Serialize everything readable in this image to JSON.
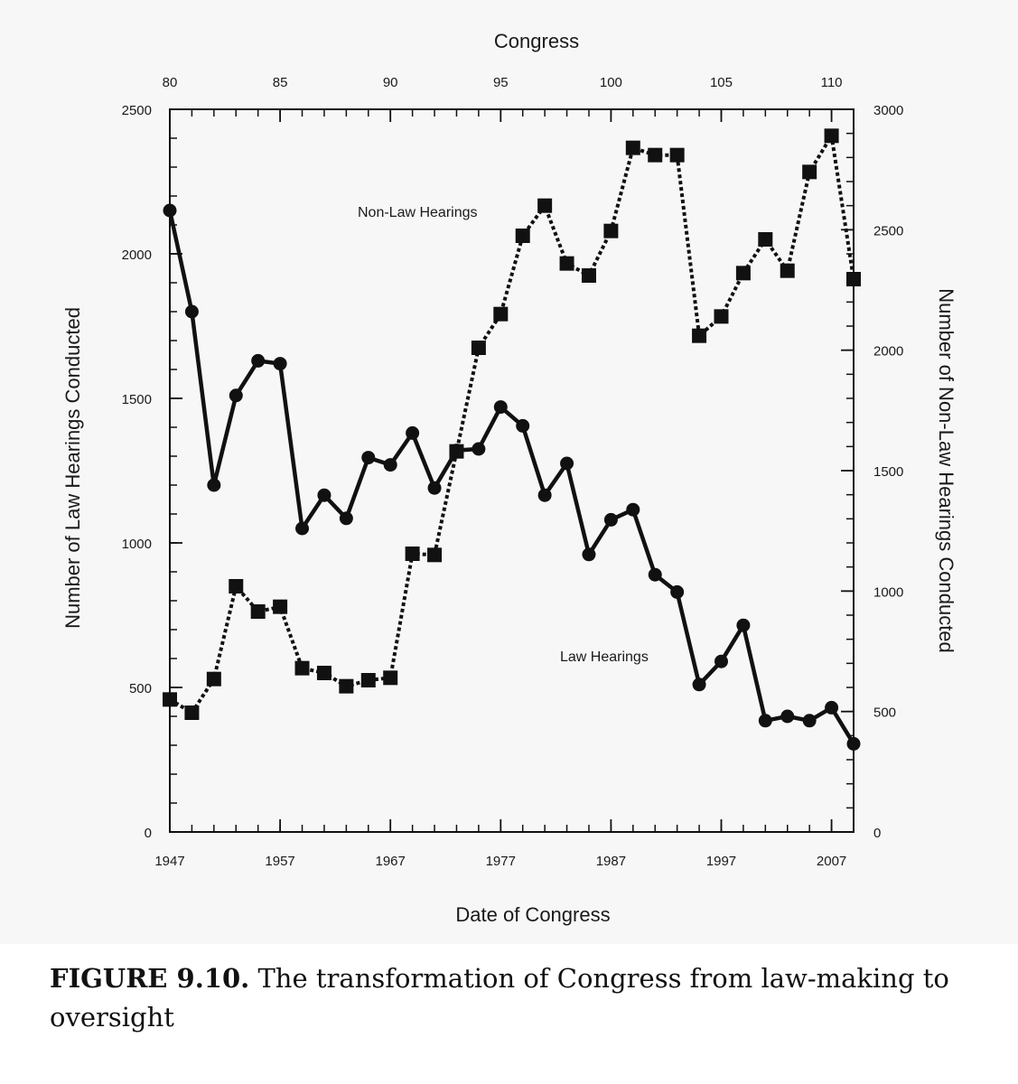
{
  "chart_data": {
    "type": "line",
    "x": [
      1947,
      1949,
      1951,
      1953,
      1955,
      1957,
      1959,
      1961,
      1963,
      1965,
      1967,
      1969,
      1971,
      1973,
      1975,
      1977,
      1979,
      1981,
      1983,
      1985,
      1987,
      1989,
      1991,
      1993,
      1995,
      1997,
      1999,
      2001,
      2003,
      2005,
      2007,
      2009
    ],
    "top_xlabel": "Congress",
    "top_ticks": [
      {
        "value": 1947,
        "label": "80"
      },
      {
        "value": 1957,
        "label": "85"
      },
      {
        "value": 1967,
        "label": "90"
      },
      {
        "value": 1977,
        "label": "95"
      },
      {
        "value": 1987,
        "label": "100"
      },
      {
        "value": 1997,
        "label": "105"
      },
      {
        "value": 2007,
        "label": "110"
      }
    ],
    "xlabel": "Date of Congress",
    "xticks": [
      1947,
      1957,
      1967,
      1977,
      1987,
      1997,
      2007
    ],
    "xlim": [
      1947,
      2009
    ],
    "ylabel": "Number of Law Hearings Conducted",
    "ylim": [
      0,
      2500
    ],
    "yticks": [
      0,
      500,
      1000,
      1500,
      2000,
      2500
    ],
    "y2label": "Number of Non-Law Hearings Conducted",
    "y2lim": [
      0,
      3000
    ],
    "y2ticks": [
      0,
      500,
      1000,
      1500,
      2000,
      2500,
      3000
    ],
    "series": [
      {
        "name": "Law Hearings",
        "axis": "left",
        "marker": "circle",
        "line": "solid",
        "values": [
          2150,
          1800,
          1200,
          1510,
          1630,
          1620,
          1050,
          1165,
          1085,
          1295,
          1270,
          1380,
          1190,
          1320,
          1325,
          1470,
          1405,
          1165,
          1275,
          960,
          1080,
          1115,
          890,
          830,
          510,
          590,
          715,
          385,
          400,
          385,
          430,
          305
        ]
      },
      {
        "name": "Non-Law Hearings",
        "axis": "right",
        "marker": "square",
        "line": "dotted",
        "values": [
          550,
          495,
          635,
          1020,
          915,
          935,
          680,
          660,
          605,
          630,
          640,
          1155,
          1150,
          1580,
          2010,
          2150,
          2475,
          2600,
          2360,
          2310,
          2495,
          2840,
          2810,
          2810,
          2060,
          2140,
          2320,
          2460,
          2330,
          2740,
          2890,
          2295
        ]
      }
    ]
  }
}
